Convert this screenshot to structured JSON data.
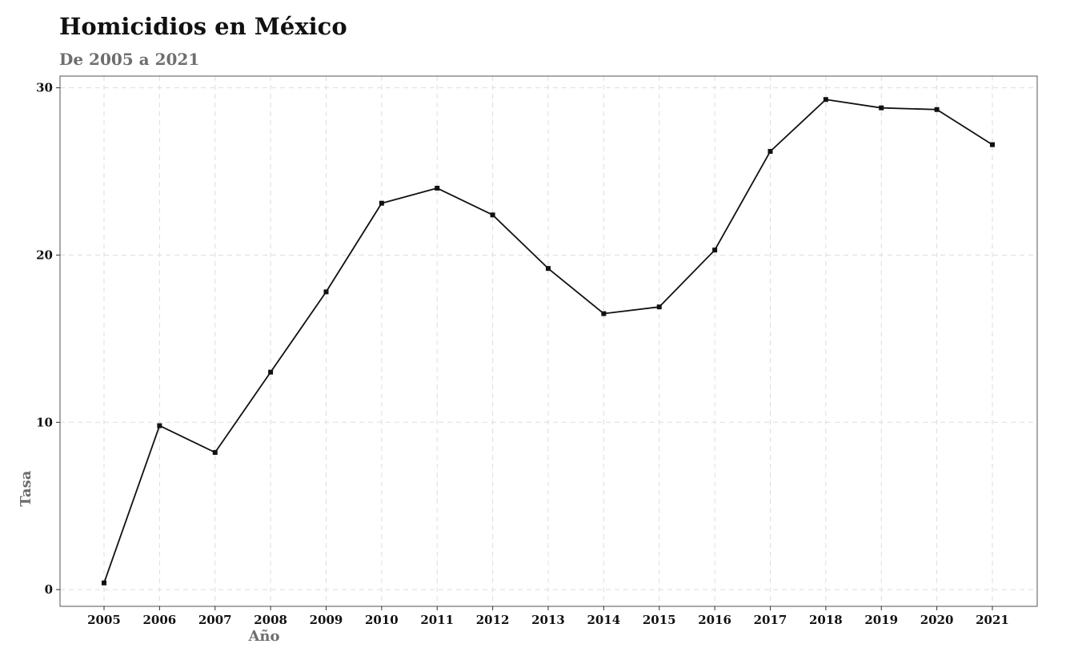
{
  "chart_data": {
    "type": "line",
    "title": "Homicidios en México",
    "subtitle": "De 2005 a 2021",
    "xlabel": "Año",
    "ylabel": "Tasa",
    "x": [
      "2005",
      "2006",
      "2007",
      "2008",
      "2009",
      "2010",
      "2011",
      "2012",
      "2013",
      "2014",
      "2015",
      "2016",
      "2017",
      "2018",
      "2019",
      "2020",
      "2021"
    ],
    "series": [
      {
        "values": [
          0.4,
          9.8,
          8.2,
          13.0,
          17.8,
          23.1,
          24.0,
          22.4,
          19.2,
          16.5,
          16.9,
          20.3,
          26.2,
          29.3,
          28.8,
          28.7,
          26.6
        ]
      }
    ],
    "yticks": [
      0,
      10,
      20,
      30
    ],
    "ylim": [
      -1,
      30.7
    ],
    "grid": true,
    "line_color": "#111111",
    "grid_color": "#dddddd"
  }
}
